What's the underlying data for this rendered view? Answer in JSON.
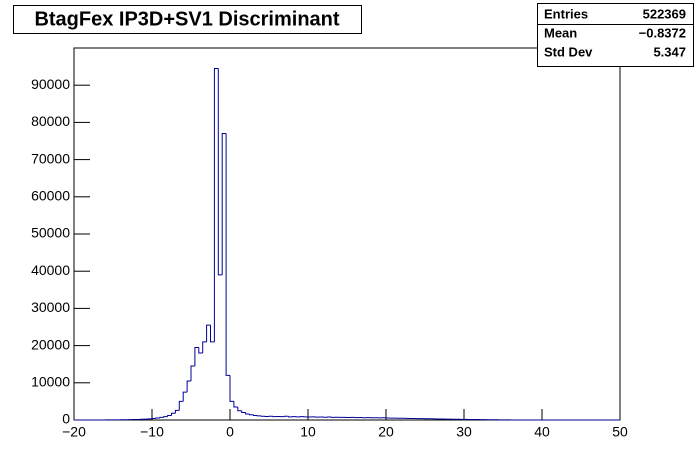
{
  "chart_data": {
    "type": "histogram",
    "title": "BtagFex IP3D+SV1 Discriminant",
    "color": "#000099",
    "bins": [
      -20,
      -19.5,
      -19,
      -18.5,
      -18,
      -17.5,
      -17,
      -16.5,
      -16,
      -15.5,
      -15,
      -14.5,
      -14,
      -13.5,
      -13,
      -12.5,
      -12,
      -11.5,
      -11,
      -10.5,
      -10,
      -9.5,
      -9,
      -8.5,
      -8,
      -7.5,
      -7,
      -6.5,
      -6,
      -5.5,
      -5,
      -4.5,
      -4,
      -3.5,
      -3,
      -2.5,
      -2,
      -1.5,
      -1,
      -0.5,
      0,
      0.5,
      1,
      1.5,
      2,
      2.5,
      3,
      3.5,
      4,
      4.5,
      5,
      5.5,
      6,
      6.5,
      7,
      7.5,
      8,
      8.5,
      9,
      9.5,
      10,
      10.5,
      11,
      11.5,
      12,
      12.5,
      13,
      13.5,
      14,
      14.5,
      15,
      15.5,
      16,
      16.5,
      17,
      17.5,
      18,
      18.5,
      19,
      19.5,
      20,
      20.5,
      21,
      21.5,
      22,
      22.5,
      23,
      23.5,
      24,
      24.5,
      25,
      25.5,
      26,
      26.5,
      27,
      27.5,
      28,
      28.5,
      29,
      29.5,
      30,
      30.5,
      31,
      31.5,
      32,
      32.5,
      33,
      33.5,
      34,
      34.5,
      35,
      35.5,
      36,
      36.5,
      37,
      37.5,
      38,
      38.5,
      39,
      39.5,
      40,
      40.5,
      41,
      41.5,
      42,
      42.5,
      43,
      43.5,
      44,
      44.5,
      45,
      45.5,
      46,
      46.5,
      47,
      47.5,
      48,
      48.5,
      49,
      49.5,
      50
    ],
    "counts": [
      0,
      0,
      0,
      0,
      0,
      0,
      0,
      0,
      20,
      30,
      40,
      50,
      60,
      80,
      100,
      120,
      150,
      200,
      250,
      300,
      400,
      550,
      700,
      900,
      1200,
      1800,
      2600,
      5000,
      7500,
      10500,
      14500,
      19500,
      18000,
      21000,
      25500,
      21000,
      94500,
      39000,
      77000,
      12000,
      5000,
      3500,
      2500,
      2000,
      1600,
      1400,
      1200,
      1100,
      1000,
      950,
      1000,
      900,
      950,
      900,
      1000,
      850,
      900,
      850,
      900,
      850,
      800,
      850,
      780,
      800,
      750,
      800,
      720,
      750,
      700,
      720,
      680,
      700,
      650,
      680,
      620,
      650,
      600,
      620,
      580,
      600,
      550,
      520,
      500,
      480,
      460,
      450,
      420,
      400,
      380,
      360,
      340,
      320,
      300,
      280,
      260,
      250,
      230,
      210,
      200,
      180,
      160,
      150,
      130,
      120,
      100,
      90,
      80,
      70,
      60,
      50,
      40,
      30,
      0,
      0,
      0,
      0,
      0,
      0,
      0,
      0,
      0,
      0,
      0,
      0,
      0,
      0,
      0,
      0,
      0,
      0,
      0,
      0,
      0,
      0,
      0,
      0,
      0,
      0,
      0,
      0
    ],
    "xlim": [
      -20,
      50
    ],
    "xticks": [
      {
        "value": -20,
        "label": "−20"
      },
      {
        "value": -10,
        "label": "−10"
      },
      0,
      10,
      20,
      30,
      40,
      50
    ],
    "ylim": [
      0,
      100000
    ],
    "yticks": [
      0,
      10000,
      20000,
      30000,
      40000,
      50000,
      60000,
      70000,
      80000,
      90000
    ],
    "stats": [
      {
        "label": "Entries",
        "value": "522369"
      },
      {
        "label": "Mean",
        "value": "−0.8372"
      },
      {
        "label": "Std Dev",
        "value": "5.347"
      }
    ]
  }
}
